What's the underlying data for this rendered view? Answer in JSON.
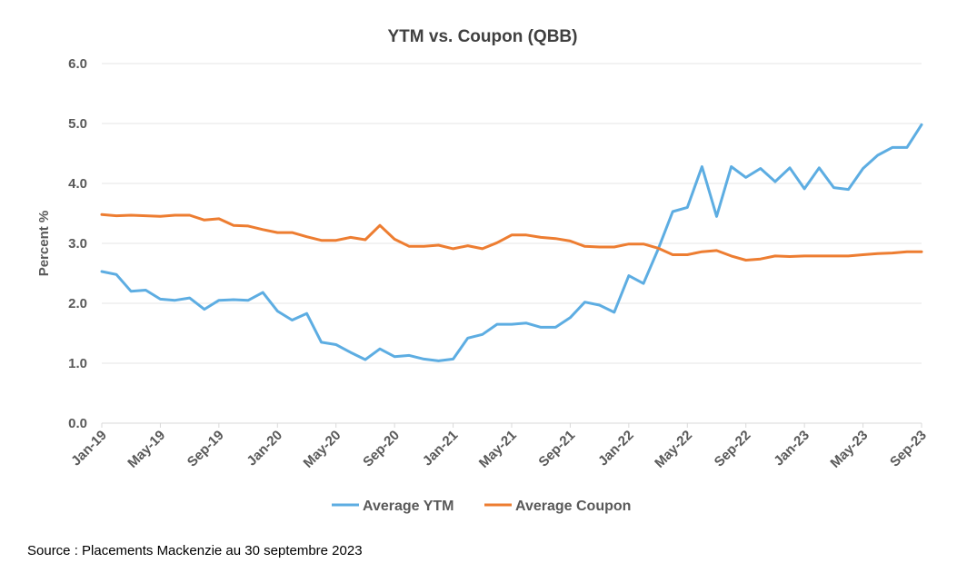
{
  "chart_data": {
    "type": "line",
    "title": "YTM vs. Coupon (QBB)",
    "ylabel": "Percent %",
    "xlabel": "",
    "ylim": [
      0,
      6
    ],
    "yticks": [
      "0.0",
      "1.0",
      "2.0",
      "3.0",
      "4.0",
      "5.0",
      "6.0"
    ],
    "x_tick_labels": [
      "Jan-19",
      "May-19",
      "Sep-19",
      "Jan-20",
      "May-20",
      "Sep-20",
      "Jan-21",
      "May-21",
      "Sep-21",
      "Jan-22",
      "May-22",
      "Sep-22",
      "Jan-23",
      "May-23",
      "Sep-23"
    ],
    "x": [
      "2019-01",
      "2019-02",
      "2019-03",
      "2019-04",
      "2019-05",
      "2019-06",
      "2019-07",
      "2019-08",
      "2019-09",
      "2019-10",
      "2019-11",
      "2019-12",
      "2020-01",
      "2020-02",
      "2020-03",
      "2020-04",
      "2020-05",
      "2020-06",
      "2020-07",
      "2020-08",
      "2020-09",
      "2020-10",
      "2020-11",
      "2020-12",
      "2021-01",
      "2021-02",
      "2021-03",
      "2021-04",
      "2021-05",
      "2021-06",
      "2021-07",
      "2021-08",
      "2021-09",
      "2021-10",
      "2021-11",
      "2021-12",
      "2022-01",
      "2022-02",
      "2022-03",
      "2022-04",
      "2022-05",
      "2022-06",
      "2022-07",
      "2022-08",
      "2022-09",
      "2022-10",
      "2022-11",
      "2022-12",
      "2023-01",
      "2023-02",
      "2023-03",
      "2023-04",
      "2023-05",
      "2023-06",
      "2023-07",
      "2023-08",
      "2023-09"
    ],
    "series": [
      {
        "name": "Average YTM",
        "color": "#5dade2",
        "values": [
          2.53,
          2.48,
          2.2,
          2.22,
          2.07,
          2.05,
          2.09,
          1.9,
          2.05,
          2.06,
          2.05,
          2.18,
          1.87,
          1.72,
          1.83,
          1.35,
          1.31,
          1.18,
          1.06,
          1.24,
          1.11,
          1.13,
          1.07,
          1.04,
          1.07,
          1.42,
          1.48,
          1.65,
          1.65,
          1.67,
          1.6,
          1.6,
          1.76,
          2.02,
          1.97,
          1.85,
          2.46,
          2.33,
          2.9,
          3.53,
          3.6,
          4.28,
          3.45,
          4.28,
          4.1,
          4.25,
          4.03,
          4.26,
          3.91,
          4.26,
          3.93,
          3.9,
          4.25,
          4.47,
          4.6,
          4.6,
          4.98
        ]
      },
      {
        "name": "Average Coupon",
        "color": "#ed7d31",
        "values": [
          3.48,
          3.46,
          3.47,
          3.46,
          3.45,
          3.47,
          3.47,
          3.39,
          3.41,
          3.3,
          3.29,
          3.23,
          3.18,
          3.18,
          3.11,
          3.05,
          3.05,
          3.1,
          3.06,
          3.3,
          3.07,
          2.95,
          2.95,
          2.97,
          2.91,
          2.96,
          2.91,
          3.01,
          3.14,
          3.14,
          3.1,
          3.08,
          3.04,
          2.95,
          2.94,
          2.94,
          2.99,
          2.99,
          2.92,
          2.81,
          2.81,
          2.86,
          2.88,
          2.79,
          2.72,
          2.74,
          2.79,
          2.78,
          2.79,
          2.79,
          2.79,
          2.79,
          2.81,
          2.83,
          2.84,
          2.86,
          2.86
        ]
      }
    ],
    "legend_position": "bottom",
    "grid": true
  },
  "footer": {
    "source": "Source : Placements Mackenzie au 30 septembre 2023"
  }
}
